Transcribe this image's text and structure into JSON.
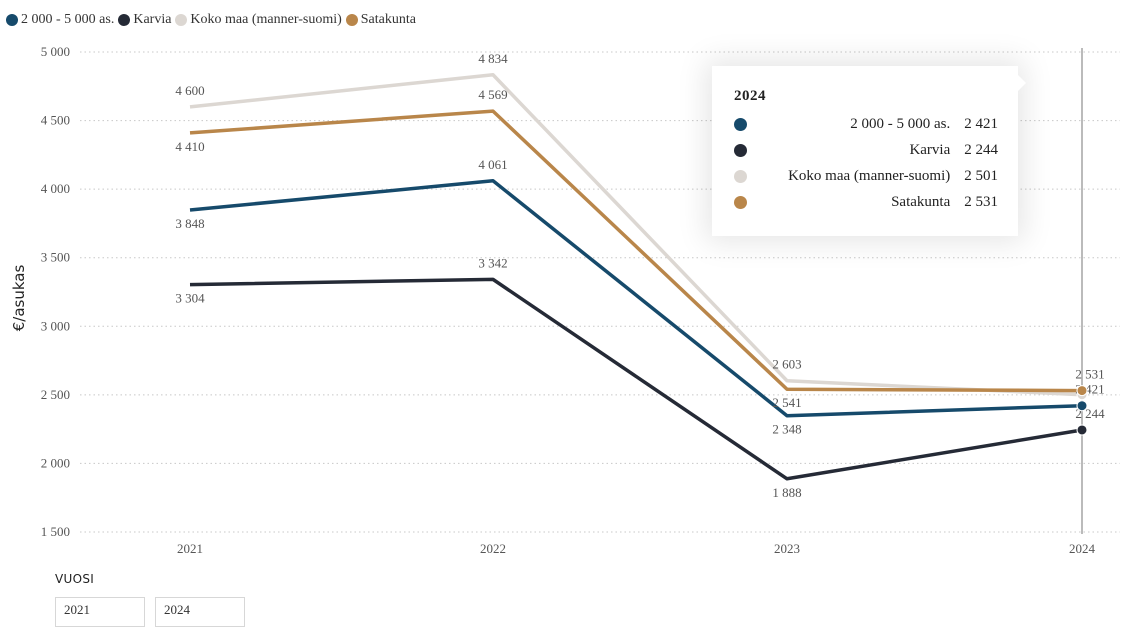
{
  "colors": {
    "series_2000_5000": "#164a6b",
    "karvia": "#252a36",
    "koko_maa": "#dcd7d2",
    "satakunta": "#b9864a",
    "grid": "#c8c8c8",
    "axis_text": "#555555"
  },
  "chart_data": {
    "type": "line",
    "title": "",
    "xlabel": "",
    "ylabel": "€/asukas",
    "categories": [
      "2021",
      "2022",
      "2023",
      "2024"
    ],
    "ylim": [
      1500,
      5000
    ],
    "yticks": [
      "1 500",
      "2 000",
      "2 500",
      "3 000",
      "3 500",
      "4 000",
      "4 500",
      "5 000"
    ],
    "ytick_values": [
      1500,
      2000,
      2500,
      3000,
      3500,
      4000,
      4500,
      5000
    ],
    "grid": "horizontal dotted",
    "legend_position": "top-left",
    "series": [
      {
        "name": "Koko maa (manner-suomi)",
        "color": "#dcd7d2",
        "values": [
          4600,
          4834,
          2603,
          2501
        ],
        "labels": [
          "4 600",
          "4 834",
          "2 603",
          "2 501"
        ]
      },
      {
        "name": "Satakunta",
        "color": "#b9864a",
        "values": [
          4410,
          4569,
          2541,
          2531
        ],
        "labels": [
          "4 410",
          "4 569",
          "2 541",
          "2 531"
        ]
      },
      {
        "name": "2 000 - 5 000 as.",
        "color": "#164a6b",
        "values": [
          3848,
          4061,
          2348,
          2421
        ],
        "labels": [
          "3 848",
          "4 061",
          "2 348",
          "2 421"
        ]
      },
      {
        "name": "Karvia",
        "color": "#252a36",
        "values": [
          3304,
          3342,
          1888,
          2244
        ],
        "labels": [
          "3 304",
          "3 342",
          "1 888",
          "2 244"
        ]
      }
    ],
    "highlighted_category": "2024"
  },
  "legend": [
    {
      "label": "2 000 - 5 000 as.",
      "color": "#164a6b"
    },
    {
      "label": "Karvia",
      "color": "#252a36"
    },
    {
      "label": "Koko maa (manner-suomi)",
      "color": "#dcd7d2"
    },
    {
      "label": "Satakunta",
      "color": "#b9864a"
    }
  ],
  "tooltip": {
    "title": "2024",
    "rows": [
      {
        "name": "2 000 - 5 000 as.",
        "value": "2 421",
        "color": "#164a6b"
      },
      {
        "name": "Karvia",
        "value": "2 244",
        "color": "#252a36"
      },
      {
        "name": "Koko maa (manner-suomi)",
        "value": "2 501",
        "color": "#dcd7d2"
      },
      {
        "name": "Satakunta",
        "value": "2 531",
        "color": "#b9864a"
      }
    ]
  },
  "filter": {
    "title": "VUOSI",
    "options": [
      "2021",
      "2024"
    ]
  }
}
